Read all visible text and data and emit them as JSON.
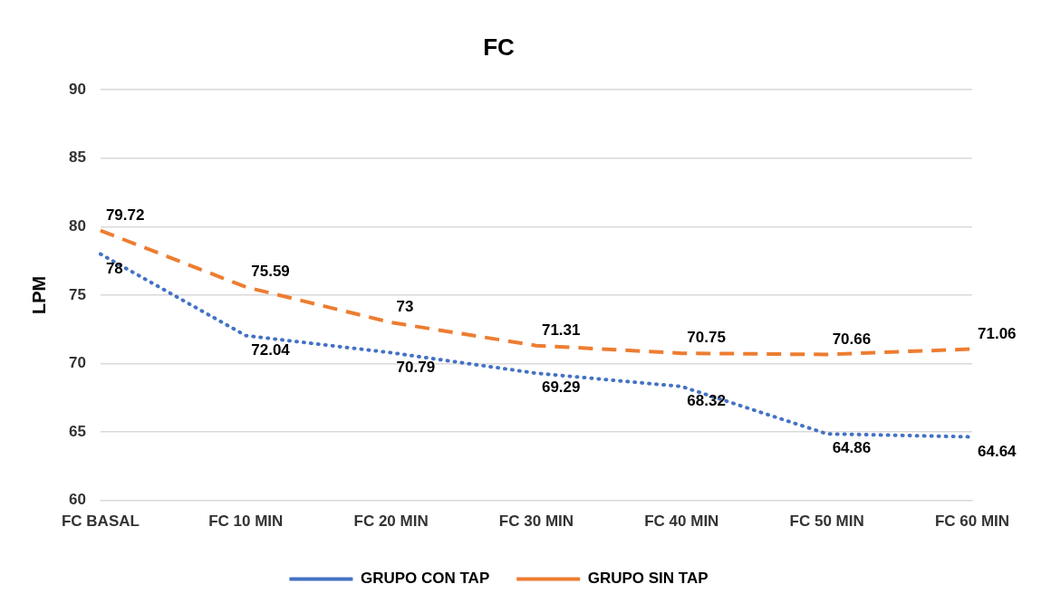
{
  "chart_data": {
    "type": "line",
    "title": "FC",
    "ylabel": "LPM",
    "categories": [
      "FC BASAL",
      "FC 10 MIN",
      "FC 20 MIN",
      "FC 30 MIN",
      "FC 40 MIN",
      "FC 50 MIN",
      "FC 60 MIN"
    ],
    "series": [
      {
        "name": "GRUPO CON TAP",
        "color": "#4472c4",
        "line_style": "dotted",
        "values": [
          78,
          72.04,
          70.79,
          69.29,
          68.32,
          64.86,
          64.64
        ]
      },
      {
        "name": "GRUPO SIN TAP",
        "color": "#ed7d31",
        "line_style": "dashed",
        "values": [
          79.72,
          75.59,
          73,
          71.31,
          70.75,
          70.66,
          71.06
        ]
      }
    ],
    "ylim": [
      60,
      90
    ],
    "yticks": [
      60,
      65,
      70,
      75,
      80,
      85,
      90
    ],
    "grid": "y",
    "legend": "bottom",
    "marker": "none",
    "data_labels": true
  }
}
